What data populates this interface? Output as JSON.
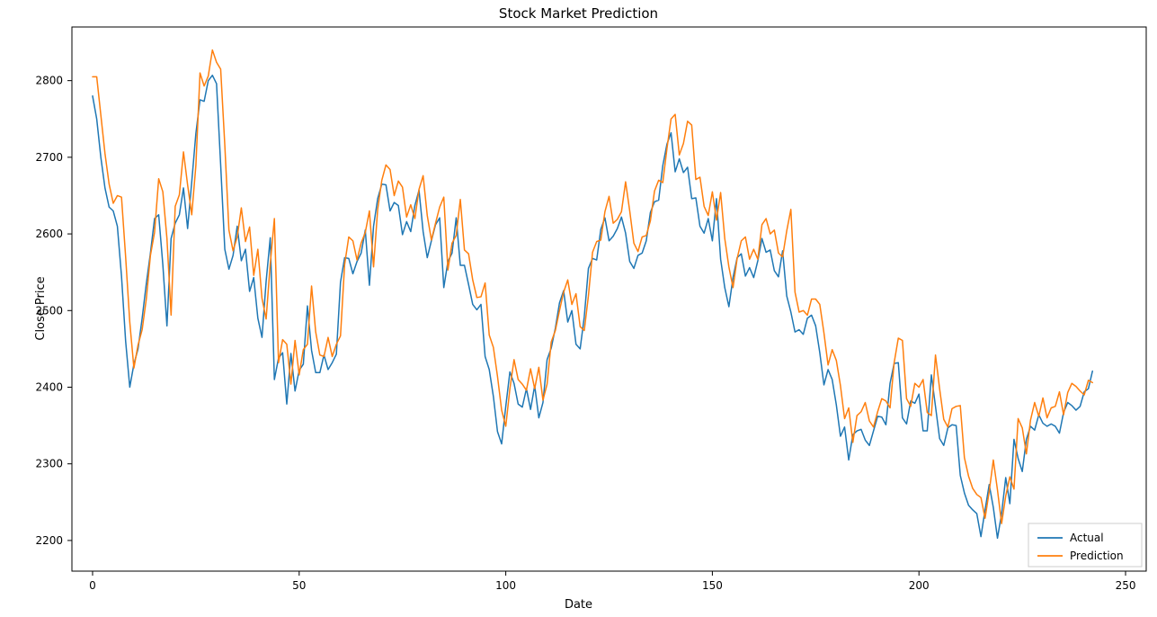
{
  "chart": {
    "type": "line",
    "title": "Stock Market Prediction",
    "title_fontsize": 15,
    "xlabel": "Date",
    "ylabel": "Close Price",
    "label_fontsize": 13,
    "tick_fontsize": 12,
    "background_color": "#ffffff",
    "axes_edge_color": "#000000",
    "line_width": 1.5,
    "xlim": [
      -5,
      255
    ],
    "ylim": [
      2160,
      2870
    ],
    "xticks": [
      0,
      50,
      100,
      150,
      200,
      250
    ],
    "yticks": [
      2200,
      2300,
      2400,
      2500,
      2600,
      2700,
      2800
    ],
    "legend": {
      "location": "lower right",
      "labels": [
        "Actual",
        "Prediction"
      ],
      "line_colors": [
        "#1f77b4",
        "#ff7f0e"
      ]
    },
    "series": [
      {
        "name": "Actual",
        "color": "#1f77b4",
        "values": [
          2780,
          2750,
          2700,
          2660,
          2635,
          2630,
          2610,
          2545,
          2460,
          2400,
          2430,
          2450,
          2490,
          2535,
          2575,
          2620,
          2625,
          2560,
          2480,
          2594,
          2614,
          2625,
          2660,
          2607,
          2668,
          2731,
          2775,
          2773,
          2800,
          2807,
          2796,
          2690,
          2580,
          2554,
          2572,
          2610,
          2565,
          2580,
          2525,
          2543,
          2490,
          2465,
          2538,
          2595,
          2410,
          2438,
          2445,
          2378,
          2444,
          2395,
          2422,
          2430,
          2506,
          2448,
          2419,
          2419,
          2442,
          2423,
          2432,
          2443,
          2537,
          2569,
          2568,
          2548,
          2564,
          2575,
          2605,
          2533,
          2610,
          2646,
          2665,
          2664,
          2630,
          2641,
          2637,
          2599,
          2616,
          2603,
          2637,
          2657,
          2603,
          2569,
          2591,
          2612,
          2621,
          2530,
          2564,
          2575,
          2621,
          2559,
          2559,
          2534,
          2508,
          2501,
          2508,
          2440,
          2423,
          2388,
          2342,
          2326,
          2375,
          2420,
          2405,
          2378,
          2374,
          2398,
          2371,
          2402,
          2360,
          2380,
          2436,
          2451,
          2477,
          2510,
          2526,
          2485,
          2500,
          2456,
          2450,
          2492,
          2555,
          2568,
          2566,
          2606,
          2621,
          2591,
          2597,
          2607,
          2622,
          2601,
          2564,
          2555,
          2572,
          2575,
          2591,
          2628,
          2642,
          2644,
          2689,
          2717,
          2732,
          2681,
          2698,
          2680,
          2687,
          2646,
          2647,
          2610,
          2601,
          2620,
          2591,
          2646,
          2567,
          2530,
          2505,
          2543,
          2569,
          2574,
          2545,
          2556,
          2543,
          2565,
          2594,
          2576,
          2579,
          2552,
          2544,
          2578,
          2519,
          2498,
          2472,
          2475,
          2469,
          2490,
          2494,
          2480,
          2445,
          2403,
          2423,
          2410,
          2377,
          2336,
          2348,
          2305,
          2338,
          2343,
          2345,
          2331,
          2324,
          2343,
          2362,
          2361,
          2351,
          2405,
          2431,
          2432,
          2360,
          2352,
          2382,
          2379,
          2391,
          2343,
          2343,
          2416,
          2375,
          2333,
          2324,
          2347,
          2351,
          2350,
          2285,
          2262,
          2246,
          2240,
          2235,
          2205,
          2240,
          2273,
          2243,
          2203,
          2235,
          2282,
          2248,
          2332,
          2307,
          2290,
          2332,
          2349,
          2344,
          2364,
          2353,
          2349,
          2352,
          2349,
          2340,
          2367,
          2380,
          2376,
          2370,
          2375,
          2394,
          2398,
          2421
        ]
      },
      {
        "name": "Prediction",
        "color": "#ff7f0e",
        "values": [
          2805,
          2805,
          2755,
          2705,
          2665,
          2640,
          2650,
          2648,
          2570,
          2485,
          2425,
          2455,
          2475,
          2515,
          2572,
          2602,
          2672,
          2655,
          2594,
          2494,
          2636,
          2651,
          2707,
          2664,
          2625,
          2689,
          2810,
          2793,
          2806,
          2840,
          2824,
          2815,
          2716,
          2605,
          2578,
          2596,
          2634,
          2590,
          2609,
          2546,
          2580,
          2516,
          2489,
          2561,
          2620,
          2432,
          2462,
          2456,
          2404,
          2461,
          2416,
          2449,
          2456,
          2532,
          2472,
          2442,
          2440,
          2465,
          2440,
          2456,
          2467,
          2560,
          2596,
          2591,
          2566,
          2588,
          2602,
          2630,
          2557,
          2632,
          2670,
          2690,
          2684,
          2650,
          2669,
          2661,
          2622,
          2638,
          2620,
          2658,
          2676,
          2624,
          2592,
          2614,
          2635,
          2648,
          2553,
          2588,
          2598,
          2645,
          2579,
          2574,
          2540,
          2517,
          2518,
          2536,
          2468,
          2452,
          2414,
          2370,
          2349,
          2398,
          2436,
          2410,
          2404,
          2396,
          2424,
          2398,
          2426,
          2383,
          2404,
          2459,
          2474,
          2500,
          2524,
          2540,
          2508,
          2522,
          2479,
          2474,
          2519,
          2576,
          2590,
          2592,
          2629,
          2649,
          2614,
          2619,
          2629,
          2668,
          2630,
          2588,
          2577,
          2596,
          2598,
          2617,
          2656,
          2670,
          2667,
          2711,
          2750,
          2756,
          2703,
          2718,
          2747,
          2742,
          2671,
          2674,
          2636,
          2624,
          2655,
          2618,
          2654,
          2594,
          2557,
          2530,
          2568,
          2591,
          2596,
          2567,
          2580,
          2567,
          2612,
          2620,
          2600,
          2605,
          2575,
          2570,
          2604,
          2632,
          2524,
          2498,
          2500,
          2494,
          2515,
          2515,
          2508,
          2471,
          2429,
          2449,
          2435,
          2402,
          2359,
          2373,
          2328,
          2363,
          2368,
          2380,
          2356,
          2348,
          2368,
          2385,
          2382,
          2373,
          2432,
          2464,
          2461,
          2385,
          2375,
          2405,
          2400,
          2410,
          2367,
          2363,
          2442,
          2398,
          2358,
          2348,
          2372,
          2375,
          2376,
          2308,
          2284,
          2268,
          2260,
          2256,
          2229,
          2264,
          2305,
          2266,
          2222,
          2258,
          2283,
          2267,
          2359,
          2347,
          2313,
          2357,
          2380,
          2362,
          2386,
          2360,
          2373,
          2375,
          2394,
          2364,
          2393,
          2405,
          2401,
          2395,
          2390,
          2409,
          2406
        ]
      }
    ]
  }
}
